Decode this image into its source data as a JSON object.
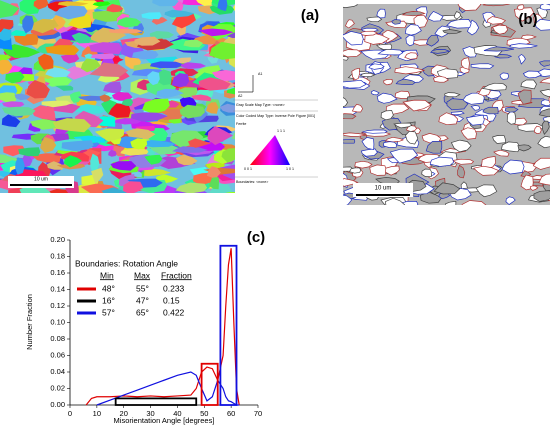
{
  "panel_a": {
    "label": "(a)",
    "scale_bar": "10 um",
    "axis_labels": [
      "A1",
      "A2"
    ],
    "legend_lines": [
      "Gray Scale Map Type: <none>",
      "Color Coded Map Type: Inverse Pole Figure [001]",
      "Ferrite",
      "Boundaries: <none>"
    ],
    "ipf_labels": [
      "1 1 1",
      "0 0 1",
      "1 0 1"
    ]
  },
  "panel_b": {
    "label": "(b)",
    "scale_bar": "10 um"
  },
  "chart_data": {
    "type": "line",
    "title": "(c)",
    "x_label": "Misorientation Angle [degrees]",
    "y_label": "Number Fraction",
    "x": [
      6,
      8,
      10,
      15,
      20,
      25,
      30,
      35,
      40,
      45,
      47,
      49,
      51,
      53,
      55,
      57,
      58,
      59,
      60,
      61,
      62,
      63
    ],
    "series": [
      {
        "color": "#e00000",
        "values": [
          0,
          0.008,
          0.01,
          0.01,
          0.011,
          0.01,
          0.011,
          0.01,
          0.011,
          0.012,
          0.02,
          0.04,
          0.046,
          0.044,
          0.03,
          0.06,
          0.12,
          0.17,
          0.19,
          0.1,
          0.02,
          0
        ]
      },
      {
        "color": "#1010e0",
        "values": [
          null,
          null,
          0,
          0.006,
          0.012,
          0.018,
          0.024,
          0.03,
          0.036,
          0.04,
          0.036,
          0.02,
          0.005,
          0.01,
          0.03,
          0.02,
          0.01,
          0.005,
          0.004,
          0.002,
          0,
          0
        ]
      }
    ],
    "xlim": [
      0,
      70
    ],
    "xticks": [
      0,
      10,
      20,
      30,
      40,
      50,
      60,
      70
    ],
    "ylim": [
      0,
      0.2
    ],
    "yticks": [
      {
        "value": 0,
        "label": "0.00"
      },
      {
        "value": 0.02,
        "label": "0.02"
      },
      {
        "value": 0.04,
        "label": "0.04"
      },
      {
        "value": 0.06,
        "label": "0.06"
      },
      {
        "value": 0.08,
        "label": "0.08"
      },
      {
        "value": 0.1,
        "label": "0.10"
      },
      {
        "value": 0.12,
        "label": "0.12"
      },
      {
        "value": 0.14,
        "label": "0.14"
      },
      {
        "value": 0.16,
        "label": "0.16"
      },
      {
        "value": 0.18,
        "label": "0.18"
      },
      {
        "value": 0.2,
        "label": "0.20"
      }
    ],
    "legend_title": "Boundaries: Rotation Angle",
    "legend_headers": [
      "Min",
      "Max",
      "Fraction"
    ],
    "boundaries": [
      {
        "min": "48°",
        "max": "55°",
        "fraction": 0.233,
        "color": "#e00000"
      },
      {
        "min": "16°",
        "max": "47°",
        "fraction": 0.15,
        "color": "#000000"
      },
      {
        "min": "57°",
        "max": "65°",
        "fraction": 0.422,
        "color": "#1010e0"
      }
    ],
    "boxes": [
      {
        "color": "#e00000",
        "xrange": [
          49,
          55
        ],
        "ytop": 0.05
      },
      {
        "color": "#000000",
        "xrange": [
          17,
          47
        ],
        "ytop": 0.008
      },
      {
        "color": "#1010e0",
        "xrange": [
          56,
          62
        ],
        "ytop": 0.193
      }
    ]
  }
}
